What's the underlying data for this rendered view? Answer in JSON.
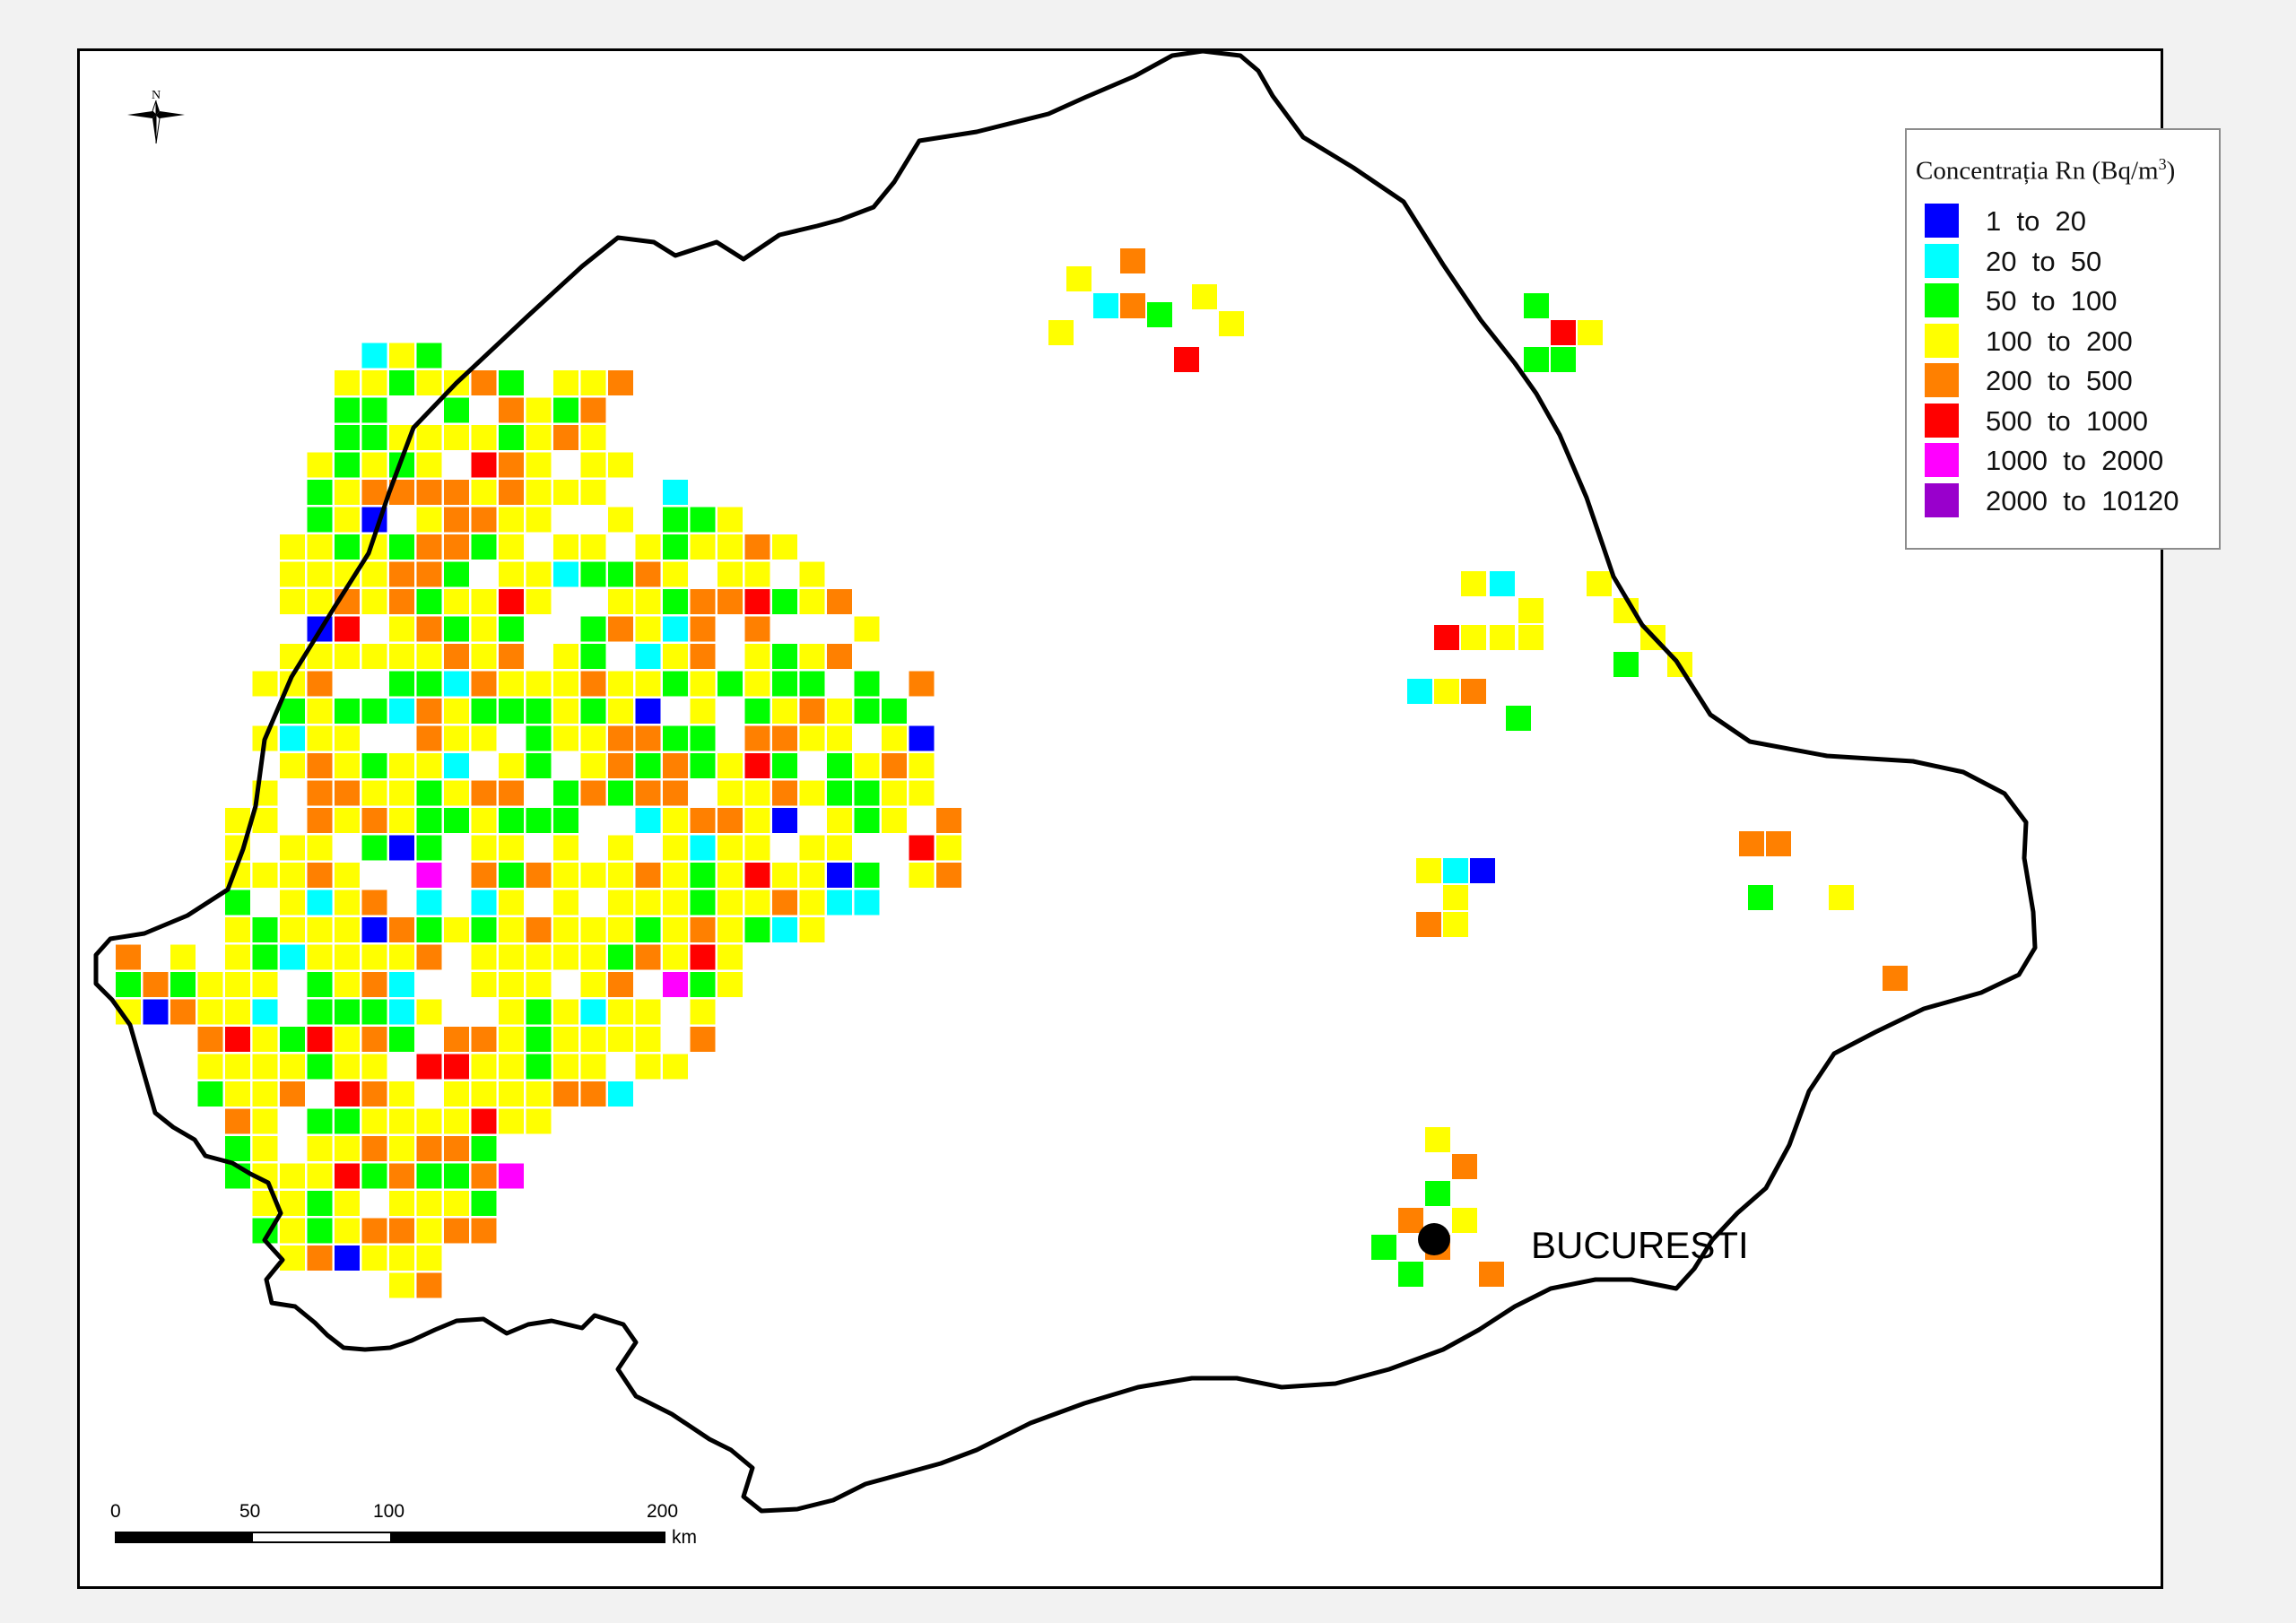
{
  "legend": {
    "title": "Concentrația Rn (Bq/m",
    "title_sup": "3",
    "title_end": ")",
    "classes": [
      {
        "label": "1  to  20",
        "color": "#0000ff"
      },
      {
        "label": "20  to  50",
        "color": "#00ffff"
      },
      {
        "label": "50  to  100",
        "color": "#00ff00"
      },
      {
        "label": "100  to  200",
        "color": "#ffff00"
      },
      {
        "label": "200  to  500",
        "color": "#ff8000"
      },
      {
        "label": "500  to  1000",
        "color": "#ff0000"
      },
      {
        "label": "1000  to  2000",
        "color": "#ff00ff"
      },
      {
        "label": "2000  to  10120",
        "color": "#9900cc"
      }
    ]
  },
  "north_arrow": {
    "label": "N"
  },
  "city": {
    "name": "BUCURESTI"
  },
  "scale_bar": {
    "labels": [
      "0",
      "50",
      "100",
      "200"
    ],
    "unit": "km"
  }
}
